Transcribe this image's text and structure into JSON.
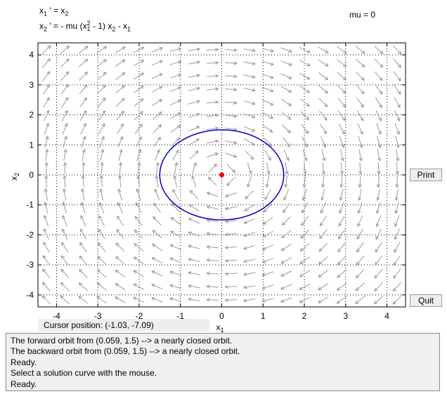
{
  "equations": {
    "eq1_left": "x",
    "eq1_left_sub": "1",
    "eq1_mid": " ' = x",
    "eq1_right_sub": "2",
    "eq2_a": "x",
    "eq2_a_sub": "2",
    "eq2_b": " ' = - mu (x",
    "eq2_b_sup": "2",
    "eq2_b_sub": "1",
    "eq2_c": " - 1) x",
    "eq2_c_sub": "2",
    "eq2_d": " - x",
    "eq2_d_sub": "1"
  },
  "mu_label": "mu = 0",
  "axes": {
    "xlabel": "x",
    "xlabel_sub": "1",
    "ylabel": "x",
    "ylabel_sub": "2",
    "xticks": [
      -4,
      -3,
      -2,
      -1,
      0,
      1,
      2,
      3,
      4
    ],
    "yticks": [
      -4,
      -3,
      -2,
      -1,
      0,
      1,
      2,
      3,
      4
    ],
    "xlim": [
      -4.45,
      4.45
    ],
    "ylim": [
      -4.4,
      4.4
    ],
    "grid": "dotted"
  },
  "equilibrium": {
    "x": 0,
    "y": 0,
    "color": "#ff0000"
  },
  "orbit": {
    "initial": [
      0.059,
      1.5
    ],
    "color": "#0000cc"
  },
  "field_color": "#9a9a9a",
  "buttons": {
    "print": "Print",
    "quit": "Quit"
  },
  "cursor_position": "Cursor position:  (-1.03, -7.09)",
  "messages": [
    "The forward orbit from (0.059, 1.5) --> a nearly closed orbit.",
    "The backward orbit from (0.059, 1.5) --> a nearly closed orbit.",
    "Ready.",
    "Select a solution curve with the mouse.",
    "Ready."
  ]
}
